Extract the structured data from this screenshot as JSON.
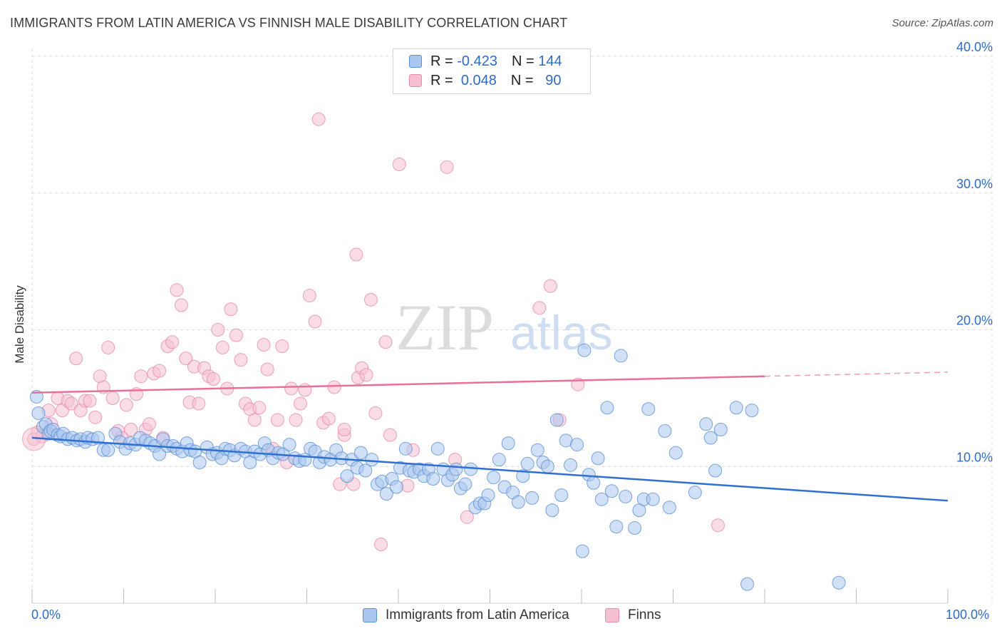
{
  "title": "IMMIGRANTS FROM LATIN AMERICA VS FINNISH MALE DISABILITY CORRELATION CHART",
  "source": "Source: ZipAtlas.com",
  "watermark": {
    "zip": "ZIP",
    "atlas": "atlas"
  },
  "colors": {
    "blue_fill": "#a9c6ef",
    "blue_stroke": "#5b8fd6",
    "blue_line": "#2f6fd0",
    "pink_fill": "#f6bfd1",
    "pink_stroke": "#e88aa9",
    "pink_line": "#e8709a",
    "axis_text": "#2f6bc4",
    "grid": "#dcdcdc"
  },
  "legend": {
    "rows": [
      {
        "r_label": "R =",
        "r_value": "-0.423",
        "n_label": "N =",
        "n_value": "144",
        "series": "blue"
      },
      {
        "r_label": "R =",
        "r_value": "0.048",
        "n_label": "N =",
        "n_value": "90",
        "series": "pink"
      }
    ]
  },
  "bottom_legend": [
    "Immigrants from Latin America",
    "Finns"
  ],
  "chart_data": {
    "type": "scatter",
    "title": "IMMIGRANTS FROM LATIN AMERICA VS FINNISH MALE DISABILITY CORRELATION CHART",
    "xlabel": "",
    "ylabel": "Male Disability",
    "xlim": [
      0,
      100
    ],
    "ylim": [
      0,
      40
    ],
    "x_tick_labels": [
      "0.0%",
      "100.0%"
    ],
    "y_ticks": [
      10,
      20,
      30,
      40
    ],
    "y_tick_labels": [
      "10.0%",
      "20.0%",
      "30.0%",
      "40.0%"
    ],
    "grid": true,
    "legend_position": "top-center",
    "series": [
      {
        "name": "Immigrants from Latin America",
        "color": "blue",
        "trend": {
          "x": [
            0,
            100
          ],
          "y": [
            12.1,
            7.5
          ]
        },
        "points": [
          [
            0.5,
            15.1
          ],
          [
            0.7,
            13.9
          ],
          [
            1.2,
            12.9
          ],
          [
            1.5,
            13.1
          ],
          [
            1.8,
            12.4
          ],
          [
            2.0,
            12.6
          ],
          [
            2.3,
            12.7
          ],
          [
            2.8,
            12.3
          ],
          [
            3.1,
            12.2
          ],
          [
            3.4,
            12.4
          ],
          [
            3.9,
            12.0
          ],
          [
            4.4,
            12.1
          ],
          [
            4.9,
            11.9
          ],
          [
            5.3,
            12.0
          ],
          [
            5.8,
            11.8
          ],
          [
            6.1,
            12.1
          ],
          [
            6.6,
            12.0
          ],
          [
            7.2,
            12.1
          ],
          [
            7.8,
            11.2
          ],
          [
            8.3,
            11.2
          ],
          [
            9.1,
            12.4
          ],
          [
            9.6,
            11.8
          ],
          [
            10.2,
            11.3
          ],
          [
            10.7,
            11.7
          ],
          [
            11.3,
            11.6
          ],
          [
            11.8,
            12.1
          ],
          [
            12.4,
            11.9
          ],
          [
            12.9,
            11.7
          ],
          [
            13.4,
            11.5
          ],
          [
            13.9,
            10.9
          ],
          [
            14.3,
            12.0
          ],
          [
            14.8,
            11.5
          ],
          [
            15.4,
            11.5
          ],
          [
            15.8,
            11.3
          ],
          [
            16.4,
            11.1
          ],
          [
            16.9,
            11.7
          ],
          [
            17.3,
            11.2
          ],
          [
            17.8,
            11.1
          ],
          [
            18.3,
            10.3
          ],
          [
            19.1,
            11.4
          ],
          [
            19.7,
            10.9
          ],
          [
            20.2,
            11.0
          ],
          [
            20.7,
            10.6
          ],
          [
            21.1,
            11.3
          ],
          [
            21.6,
            11.2
          ],
          [
            22.1,
            10.8
          ],
          [
            22.8,
            11.3
          ],
          [
            23.3,
            11.1
          ],
          [
            23.8,
            10.3
          ],
          [
            24.3,
            11.1
          ],
          [
            24.9,
            10.9
          ],
          [
            25.4,
            11.7
          ],
          [
            25.8,
            11.2
          ],
          [
            26.3,
            10.6
          ],
          [
            26.9,
            11.0
          ],
          [
            27.4,
            10.9
          ],
          [
            28.1,
            11.6
          ],
          [
            28.7,
            10.6
          ],
          [
            29.2,
            10.4
          ],
          [
            29.8,
            10.5
          ],
          [
            30.4,
            11.3
          ],
          [
            30.9,
            11.1
          ],
          [
            31.4,
            10.3
          ],
          [
            31.9,
            10.7
          ],
          [
            32.6,
            10.5
          ],
          [
            33.2,
            11.2
          ],
          [
            33.8,
            10.6
          ],
          [
            34.4,
            9.3
          ],
          [
            34.9,
            10.5
          ],
          [
            35.5,
            9.9
          ],
          [
            35.9,
            11.0
          ],
          [
            36.4,
            9.7
          ],
          [
            37.1,
            10.5
          ],
          [
            37.7,
            8.7
          ],
          [
            38.2,
            8.9
          ],
          [
            38.7,
            8.0
          ],
          [
            39.3,
            9.1
          ],
          [
            39.8,
            8.5
          ],
          [
            40.2,
            9.9
          ],
          [
            40.8,
            11.3
          ],
          [
            41.2,
            9.7
          ],
          [
            41.7,
            9.6
          ],
          [
            42.3,
            9.8
          ],
          [
            42.8,
            9.3
          ],
          [
            43.3,
            9.8
          ],
          [
            43.8,
            9.1
          ],
          [
            44.3,
            11.3
          ],
          [
            44.9,
            9.8
          ],
          [
            45.4,
            9.0
          ],
          [
            45.9,
            9.4
          ],
          [
            46.3,
            9.8
          ],
          [
            46.8,
            8.4
          ],
          [
            47.3,
            8.7
          ],
          [
            47.9,
            9.8
          ],
          [
            48.4,
            7.0
          ],
          [
            48.9,
            7.3
          ],
          [
            49.4,
            7.3
          ],
          [
            49.8,
            7.9
          ],
          [
            50.4,
            9.2
          ],
          [
            51.0,
            10.5
          ],
          [
            51.6,
            8.5
          ],
          [
            52.0,
            11.7
          ],
          [
            52.5,
            8.1
          ],
          [
            53.1,
            7.4
          ],
          [
            53.6,
            9.3
          ],
          [
            54.1,
            10.2
          ],
          [
            54.6,
            7.7
          ],
          [
            55.2,
            11.2
          ],
          [
            55.8,
            10.3
          ],
          [
            56.3,
            10.0
          ],
          [
            56.8,
            6.8
          ],
          [
            57.3,
            13.4
          ],
          [
            57.8,
            7.9
          ],
          [
            58.3,
            11.9
          ],
          [
            58.8,
            10.1
          ],
          [
            59.5,
            11.6
          ],
          [
            60.1,
            3.8
          ],
          [
            60.3,
            18.5
          ],
          [
            60.8,
            9.4
          ],
          [
            61.3,
            8.8
          ],
          [
            61.8,
            10.6
          ],
          [
            62.2,
            7.6
          ],
          [
            62.8,
            14.3
          ],
          [
            63.3,
            8.2
          ],
          [
            63.8,
            5.6
          ],
          [
            64.3,
            18.1
          ],
          [
            64.8,
            7.8
          ],
          [
            65.8,
            5.5
          ],
          [
            66.3,
            6.8
          ],
          [
            66.8,
            7.6
          ],
          [
            67.3,
            14.2
          ],
          [
            67.8,
            7.6
          ],
          [
            69.1,
            12.6
          ],
          [
            69.6,
            7.0
          ],
          [
            70.3,
            11.0
          ],
          [
            72.4,
            8.1
          ],
          [
            73.6,
            13.1
          ],
          [
            74.1,
            12.1
          ],
          [
            74.6,
            9.7
          ],
          [
            75.2,
            12.7
          ],
          [
            76.9,
            14.3
          ],
          [
            78.6,
            14.1
          ],
          [
            78.1,
            1.4
          ],
          [
            88.1,
            1.5
          ]
        ]
      },
      {
        "name": "Finns",
        "color": "pink",
        "trend": {
          "x": [
            0,
            80,
            100
          ],
          "y": [
            15.4,
            16.6,
            16.9
          ],
          "solid_until_x": 80
        },
        "points": [
          [
            0.2,
            12.0
          ],
          [
            0.6,
            12.5
          ],
          [
            1.1,
            12.2
          ],
          [
            1.8,
            14.1
          ],
          [
            2.1,
            13.1
          ],
          [
            2.8,
            15.0
          ],
          [
            3.3,
            14.1
          ],
          [
            3.9,
            14.8
          ],
          [
            4.3,
            14.6
          ],
          [
            4.8,
            17.9
          ],
          [
            5.3,
            14.1
          ],
          [
            5.8,
            14.8
          ],
          [
            6.3,
            14.8
          ],
          [
            6.9,
            13.6
          ],
          [
            7.4,
            16.6
          ],
          [
            7.8,
            15.8
          ],
          [
            8.3,
            18.7
          ],
          [
            8.8,
            15.0
          ],
          [
            9.4,
            12.6
          ],
          [
            9.8,
            12.1
          ],
          [
            10.3,
            14.5
          ],
          [
            10.8,
            12.7
          ],
          [
            11.4,
            15.3
          ],
          [
            11.9,
            16.6
          ],
          [
            12.4,
            12.7
          ],
          [
            12.8,
            13.1
          ],
          [
            13.3,
            16.8
          ],
          [
            13.9,
            17.0
          ],
          [
            14.3,
            12.1
          ],
          [
            14.8,
            18.8
          ],
          [
            15.3,
            19.1
          ],
          [
            15.8,
            22.9
          ],
          [
            16.3,
            21.8
          ],
          [
            16.8,
            17.9
          ],
          [
            17.2,
            14.7
          ],
          [
            17.7,
            17.3
          ],
          [
            18.2,
            14.6
          ],
          [
            18.8,
            17.2
          ],
          [
            19.3,
            16.6
          ],
          [
            19.8,
            16.4
          ],
          [
            20.3,
            20.0
          ],
          [
            20.8,
            18.7
          ],
          [
            21.3,
            15.7
          ],
          [
            21.7,
            21.5
          ],
          [
            22.3,
            19.6
          ],
          [
            22.8,
            17.8
          ],
          [
            23.3,
            14.6
          ],
          [
            23.8,
            14.2
          ],
          [
            24.3,
            13.4
          ],
          [
            24.8,
            14.3
          ],
          [
            25.3,
            18.9
          ],
          [
            25.7,
            17.1
          ],
          [
            26.3,
            11.3
          ],
          [
            26.8,
            13.4
          ],
          [
            27.3,
            18.8
          ],
          [
            27.8,
            10.3
          ],
          [
            28.3,
            15.7
          ],
          [
            28.8,
            13.4
          ],
          [
            29.3,
            14.6
          ],
          [
            29.8,
            15.6
          ],
          [
            30.3,
            22.5
          ],
          [
            30.9,
            20.6
          ],
          [
            31.3,
            35.4
          ],
          [
            31.8,
            13.2
          ],
          [
            32.4,
            13.5
          ],
          [
            33.0,
            15.8
          ],
          [
            33.6,
            8.7
          ],
          [
            34.1,
            12.3
          ],
          [
            34.1,
            12.7
          ],
          [
            35.1,
            8.7
          ],
          [
            35.4,
            25.5
          ],
          [
            35.6,
            16.5
          ],
          [
            36.0,
            17.2
          ],
          [
            36.5,
            16.7
          ],
          [
            37.0,
            22.2
          ],
          [
            37.5,
            13.9
          ],
          [
            38.1,
            4.3
          ],
          [
            38.6,
            19.1
          ],
          [
            39.1,
            12.3
          ],
          [
            40.1,
            32.1
          ],
          [
            41.0,
            8.6
          ],
          [
            41.6,
            11.2
          ],
          [
            45.3,
            31.9
          ],
          [
            46.2,
            10.5
          ],
          [
            47.5,
            6.3
          ],
          [
            55.4,
            21.6
          ],
          [
            56.6,
            23.2
          ],
          [
            57.6,
            13.4
          ],
          [
            59.6,
            16.0
          ],
          [
            74.9,
            5.7
          ]
        ]
      }
    ]
  }
}
